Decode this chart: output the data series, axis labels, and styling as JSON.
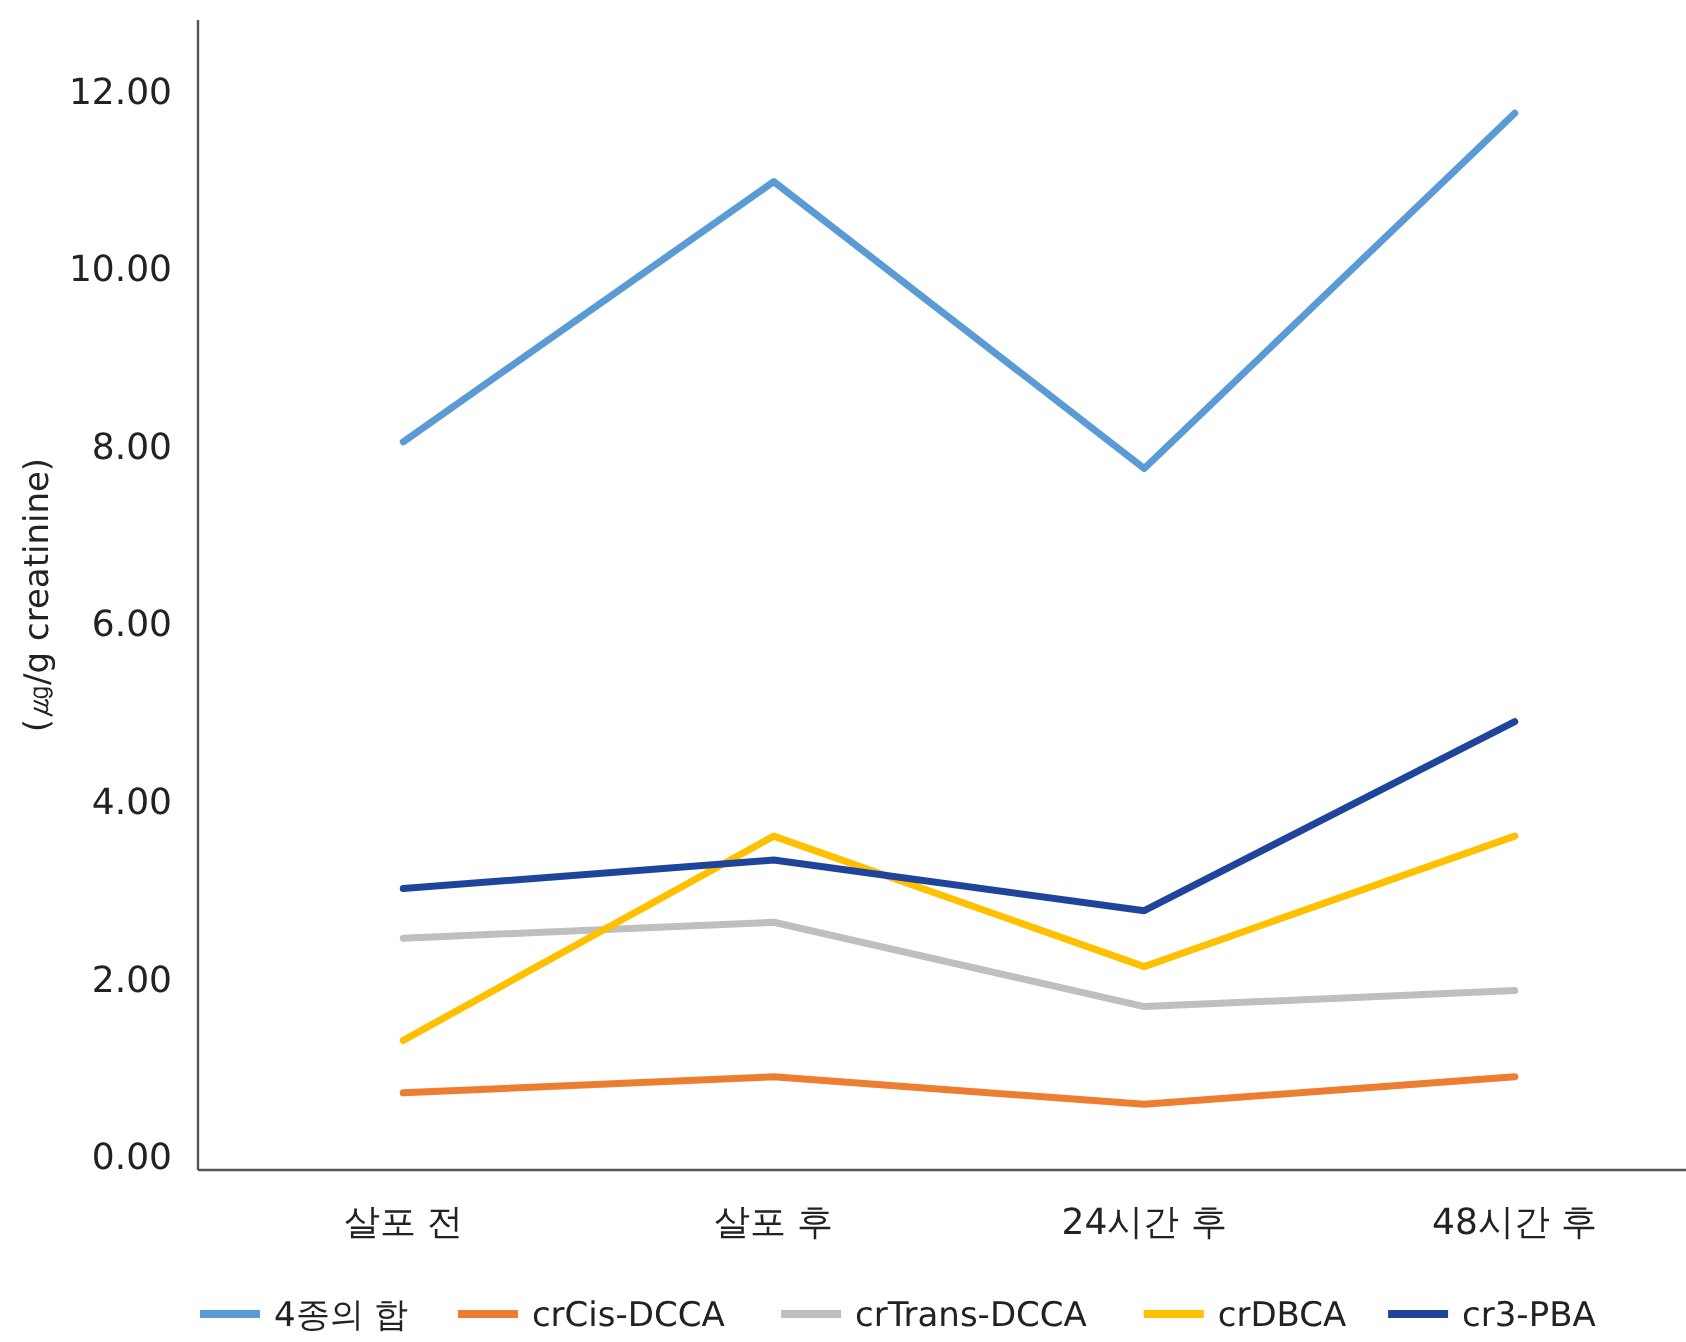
{
  "chart_data": {
    "type": "line",
    "ylabel": "(㎍/g creatinine)",
    "categories": [
      "살포 전",
      "살포 후",
      "24시간 후",
      "48시간 후"
    ],
    "series": [
      {
        "name": "4종의 합",
        "color": "#5b9bd5",
        "values": [
          8.05,
          10.98,
          7.75,
          11.75
        ]
      },
      {
        "name": "crCis-DCCA",
        "color": "#ed7d31",
        "values": [
          0.72,
          0.9,
          0.59,
          0.9
        ]
      },
      {
        "name": "crTrans-DCCA",
        "color": "#bfbfbf",
        "values": [
          2.46,
          2.64,
          1.69,
          1.87
        ]
      },
      {
        "name": "crDBCA",
        "color": "#ffc000",
        "values": [
          1.31,
          3.61,
          2.14,
          3.61
        ]
      },
      {
        "name": "cr3-PBA",
        "color": "#1f449c",
        "values": [
          3.02,
          3.34,
          2.77,
          4.9
        ]
      }
    ],
    "ylim": [
      -0.15,
      12.8
    ],
    "yticks": [
      {
        "value": 0,
        "label": "0.00"
      },
      {
        "value": 2,
        "label": "2.00"
      },
      {
        "value": 4,
        "label": "4.00"
      },
      {
        "value": 6,
        "label": "6.00"
      },
      {
        "value": 8,
        "label": "8.00"
      },
      {
        "value": 10,
        "label": "10.00"
      },
      {
        "value": 12,
        "label": "12.00"
      }
    ],
    "grid": false,
    "legend": "bottom",
    "marker": "none",
    "line_style": "solid"
  }
}
